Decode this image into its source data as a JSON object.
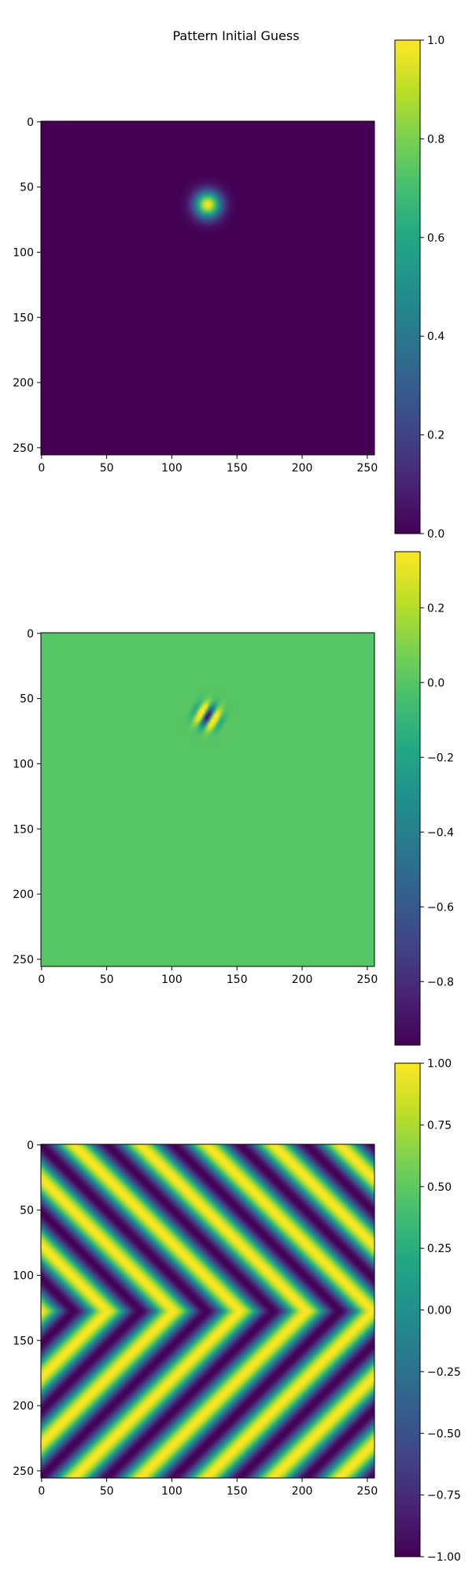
{
  "figure": {
    "title": "Pattern Initial Guess"
  },
  "colormap": "viridis",
  "chart_data": [
    {
      "type": "heatmap",
      "description_pattern": "gaussian",
      "title": "",
      "xlabel": "",
      "ylabel": "",
      "xlim": [
        0,
        255
      ],
      "ylim": [
        255,
        0
      ],
      "x_ticks": [
        "0",
        "50",
        "100",
        "150",
        "200",
        "250"
      ],
      "y_ticks": [
        "0",
        "50",
        "100",
        "150",
        "200",
        "250"
      ],
      "x_tick_values": [
        0,
        50,
        100,
        150,
        200,
        250
      ],
      "y_tick_values": [
        0,
        50,
        100,
        150,
        200,
        250
      ],
      "pattern": {
        "kind": "gaussian",
        "center": [
          128,
          64
        ],
        "sigma": 7,
        "amplitude": 1.0
      },
      "colorbar": {
        "min": 0.0,
        "max": 1.0,
        "ticks": [
          0.0,
          0.2,
          0.4,
          0.6,
          0.8,
          1.0
        ],
        "tick_labels": [
          "0.0",
          "0.2",
          "0.4",
          "0.6",
          "0.8",
          "1.0"
        ]
      }
    },
    {
      "type": "heatmap",
      "title": "",
      "xlabel": "",
      "ylabel": "",
      "xlim": [
        0,
        255
      ],
      "ylim": [
        255,
        0
      ],
      "x_ticks": [
        "0",
        "50",
        "100",
        "150",
        "200",
        "250"
      ],
      "y_ticks": [
        "0",
        "50",
        "100",
        "150",
        "200",
        "250"
      ],
      "x_tick_values": [
        0,
        50,
        100,
        150,
        200,
        250
      ],
      "y_tick_values": [
        0,
        50,
        100,
        150,
        200,
        250
      ],
      "pattern": {
        "kind": "gabor",
        "center": [
          128,
          64
        ],
        "sigma": 6,
        "wavelength": 12,
        "angle_deg": 30,
        "background": 0.0
      },
      "colorbar": {
        "min": -0.97,
        "max": 0.35,
        "ticks": [
          -0.8,
          -0.6,
          -0.4,
          -0.2,
          0.0,
          0.2
        ],
        "tick_labels": [
          "−0.8",
          "−0.6",
          "−0.4",
          "−0.2",
          "0.0",
          "0.2"
        ]
      }
    },
    {
      "type": "heatmap",
      "title": "",
      "xlabel": "",
      "ylabel": "",
      "xlim": [
        0,
        255
      ],
      "ylim": [
        255,
        0
      ],
      "x_ticks": [
        "0",
        "50",
        "100",
        "150",
        "200",
        "250"
      ],
      "y_ticks": [
        "0",
        "50",
        "100",
        "150",
        "200",
        "250"
      ],
      "x_tick_values": [
        0,
        50,
        100,
        150,
        200,
        250
      ],
      "y_tick_values": [
        0,
        50,
        100,
        150,
        200,
        250
      ],
      "pattern": {
        "kind": "chevron",
        "center_row": 128,
        "period": 51,
        "amplitude": 1.0
      },
      "colorbar": {
        "min": -1.0,
        "max": 1.0,
        "ticks": [
          -1.0,
          -0.75,
          -0.5,
          -0.25,
          0.0,
          0.25,
          0.5,
          0.75,
          1.0
        ],
        "tick_labels": [
          "−1.00",
          "−0.75",
          "−0.50",
          "−0.25",
          "0.00",
          "0.25",
          "0.50",
          "0.75",
          "1.00"
        ]
      }
    }
  ]
}
